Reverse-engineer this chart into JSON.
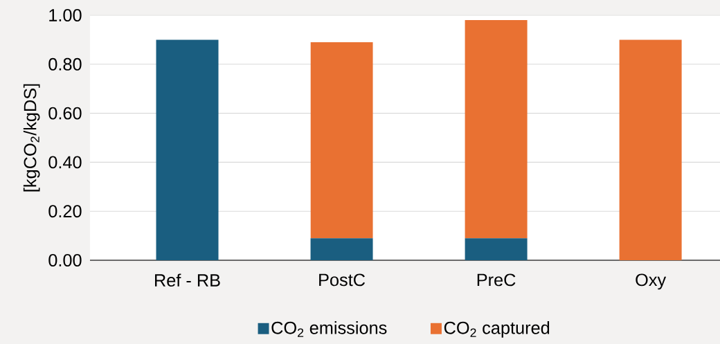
{
  "chart_data": {
    "type": "bar",
    "stacked": true,
    "ylabel": "[kgCO$_{2}$/kgDS]",
    "categories": [
      "Ref - RB",
      "PostC",
      "PreC",
      "Oxy"
    ],
    "series": [
      {
        "name": "CO$_{2}$ emissions",
        "color": "#1a5e80",
        "values": [
          0.9,
          0.09,
          0.09,
          0
        ]
      },
      {
        "name": "CO$_{2}$ captured",
        "color": "#e97132",
        "values": [
          0,
          0.8,
          0.89,
          0.9
        ]
      }
    ],
    "ylim": [
      0,
      1
    ],
    "yticks": [
      {
        "value": 0,
        "label": "0.00"
      },
      {
        "value": 0.2,
        "label": "0.20"
      },
      {
        "value": 0.4,
        "label": "0.40"
      },
      {
        "value": 0.6,
        "label": "0.60"
      },
      {
        "value": 0.8,
        "label": "0.80"
      },
      {
        "value": 1,
        "label": "1.00"
      }
    ],
    "grid": "y",
    "legend": "bottom"
  }
}
